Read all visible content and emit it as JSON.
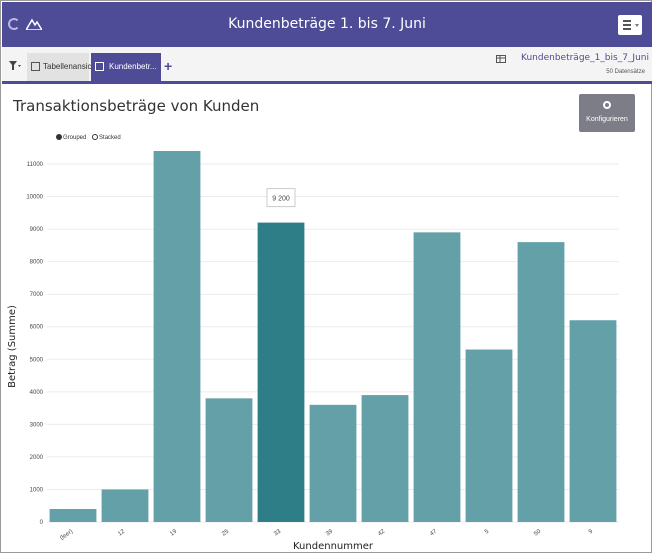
{
  "app": {
    "title": "Kundenbeträge 1. bis 7. Juni"
  },
  "tabs": [
    {
      "label": "Tabellenansicht",
      "icon": "table-icon"
    },
    {
      "label": "Kundenbetr...",
      "icon": "chart-icon",
      "active": true
    }
  ],
  "dataset": {
    "name": "Kundenbeträge_1_bis_7_Juni",
    "count": "50 Datensätze"
  },
  "toolbar": {
    "configure_label": "Konfigurieren"
  },
  "legend": {
    "grouped": "Grouped",
    "stacked": "Stacked"
  },
  "colors": {
    "header": "#4e4c97",
    "bar": "#64a0a8",
    "bar_highlight": "#2e7e87"
  },
  "chart_data": {
    "type": "bar",
    "title": "Transaktionsbeträge von Kunden",
    "xlabel": "Kundennummer",
    "ylabel": "Betrag (Summe)",
    "categories": [
      "(leer)",
      "12",
      "19",
      "25",
      "33",
      "39",
      "42",
      "47",
      "5",
      "50",
      "9"
    ],
    "values": [
      400,
      1000,
      11400,
      3800,
      9200,
      3600,
      3900,
      8900,
      5300,
      8600,
      6200
    ],
    "highlighted_index": 4,
    "tooltip": "9 200",
    "ylim": [
      0,
      11400
    ],
    "yticks": [
      0,
      1000,
      2000,
      3000,
      4000,
      5000,
      6000,
      7000,
      8000,
      9000,
      10000,
      11000
    ],
    "grid": true
  }
}
